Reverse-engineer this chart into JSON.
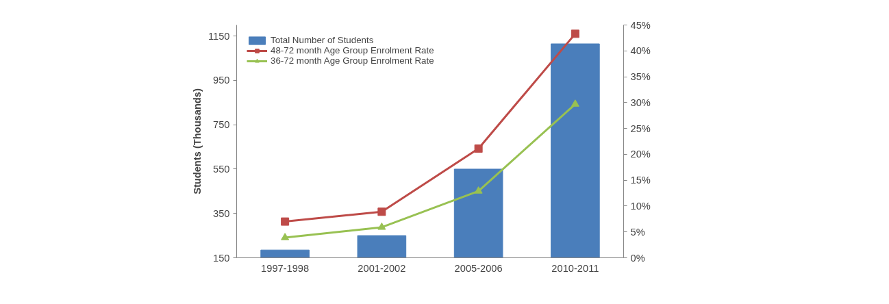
{
  "chart_data": {
    "type": "bar",
    "ylabel": "Students (Thousands)",
    "categories": [
      "1997-1998",
      "2001-2002",
      "2005-2006",
      "2010-2011"
    ],
    "series": [
      {
        "name": "Total Number of Students",
        "color": "#4a7ebb",
        "values": [
          185,
          250,
          550,
          1115
        ]
      },
      {
        "name": "48-72 month Age Group Enrolment Rate",
        "type": "line",
        "axis": "y2",
        "marker": "square",
        "color": "#be4b48",
        "values": [
          7.0,
          8.9,
          21.1,
          43.3
        ]
      },
      {
        "name": "36-72 month Age Group Enrolment Rate",
        "type": "line",
        "axis": "y2",
        "marker": "triangle",
        "color": "#98c152",
        "values": [
          3.9,
          5.9,
          12.9,
          29.7
        ]
      }
    ],
    "ylim": [
      150,
      1200
    ],
    "yticks": [
      150,
      350,
      550,
      750,
      950,
      1150
    ],
    "y2lim": [
      0,
      45
    ],
    "y2ticks": [
      {
        "value": 0,
        "label": "0%"
      },
      {
        "value": 5,
        "label": "5%"
      },
      {
        "value": 10,
        "label": "10%"
      },
      {
        "value": 15,
        "label": "15%"
      },
      {
        "value": 20,
        "label": "20%"
      },
      {
        "value": 25,
        "label": "25%"
      },
      {
        "value": 30,
        "label": "30%"
      },
      {
        "value": 35,
        "label": "35%"
      },
      {
        "value": 40,
        "label": "40%"
      },
      {
        "value": 45,
        "label": "45%"
      }
    ],
    "grid": false,
    "legend": "top left"
  }
}
